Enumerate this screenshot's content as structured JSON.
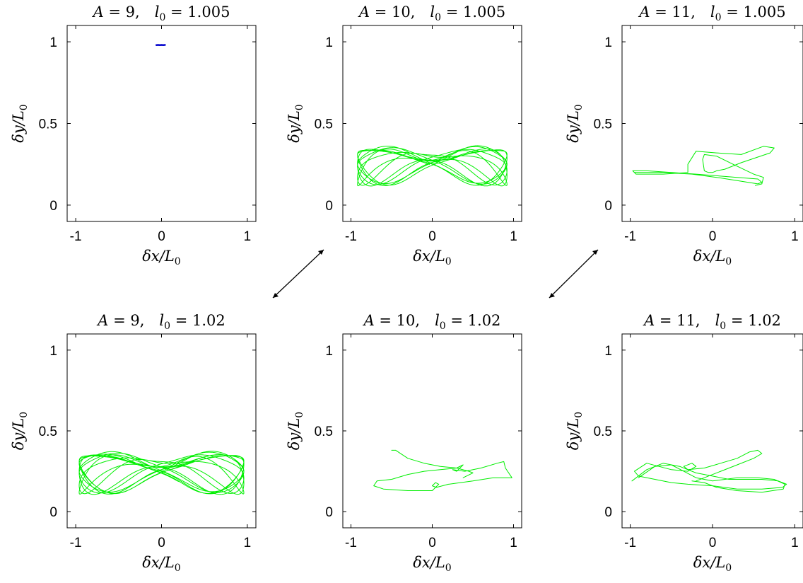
{
  "chart_data": [
    {
      "type": "line",
      "title": "A = 9,   l0 = 1.005",
      "title_parts": {
        "A": "9",
        "l0": "1.005"
      },
      "xlabel": "δx/L0",
      "ylabel": "δy/L0",
      "xlim": [
        -1.1,
        1.1
      ],
      "ylim": [
        -0.1,
        1.1
      ],
      "xticks": [
        "-1",
        "0",
        "1"
      ],
      "yticks": [
        "0",
        "0.5",
        "1"
      ],
      "grid": false,
      "series": [
        {
          "color": "#0000cc",
          "style": "point",
          "x": [
            -0.06,
            -0.04,
            -0.02,
            0.0,
            0.02,
            0.04
          ],
          "y": [
            0.98,
            0.981,
            0.98,
            0.981,
            0.98,
            0.981
          ]
        }
      ]
    },
    {
      "type": "line",
      "title": "A = 10,   l0 = 1.005",
      "title_parts": {
        "A": "10",
        "l0": "1.005"
      },
      "xlabel": "δx/L0",
      "ylabel": "δy/L0",
      "xlim": [
        -1.1,
        1.1
      ],
      "ylim": [
        -0.1,
        1.1
      ],
      "xticks": [
        "-1",
        "0",
        "1"
      ],
      "yticks": [
        "0",
        "0.5",
        "1"
      ],
      "grid": false,
      "series": [
        {
          "color": "#00ee00",
          "style": "butterfly",
          "xamp": 0.92,
          "yc": 0.25,
          "ywidth": 0.11,
          "loops": 14
        }
      ]
    },
    {
      "type": "line",
      "title": "A = 11,   l0 = 1.005",
      "title_parts": {
        "A": "11",
        "l0": "1.005"
      },
      "xlabel": "δx/L0",
      "ylabel": "δy/L0",
      "xlim": [
        -1.1,
        1.1
      ],
      "ylim": [
        -0.1,
        1.1
      ],
      "xticks": [
        "-1",
        "0",
        "1"
      ],
      "yticks": [
        "0",
        "0.5",
        "1"
      ],
      "grid": false,
      "series": [
        {
          "color": "#00ee00",
          "style": "path",
          "x": [
            -0.95,
            -0.6,
            -0.25,
            0.05,
            0.3,
            0.55,
            0.6,
            0.55,
            0.3,
            0.05,
            -0.2,
            -0.5,
            -0.8,
            -0.97,
            -0.93,
            -0.6,
            -0.3,
            -0.3,
            -0.2,
            0.05,
            0.35,
            0.62,
            0.75,
            0.7,
            0.35,
            0.15,
            0.05,
            0.0,
            -0.05,
            -0.1,
            -0.12,
            -0.1,
            0.05,
            0.25,
            0.5,
            0.62,
            0.6,
            0.52
          ],
          "y": [
            0.2,
            0.2,
            0.19,
            0.17,
            0.15,
            0.13,
            0.14,
            0.16,
            0.17,
            0.18,
            0.19,
            0.2,
            0.21,
            0.21,
            0.19,
            0.19,
            0.2,
            0.25,
            0.33,
            0.32,
            0.31,
            0.36,
            0.35,
            0.32,
            0.26,
            0.22,
            0.21,
            0.2,
            0.2,
            0.21,
            0.28,
            0.31,
            0.3,
            0.25,
            0.19,
            0.17,
            0.13,
            0.12
          ]
        }
      ]
    },
    {
      "type": "line",
      "title": "A = 9,   l0 = 1.02",
      "title_parts": {
        "A": "9",
        "l0": "1.02"
      },
      "xlabel": "δx/L0",
      "ylabel": "δy/L0",
      "xlim": [
        -1.1,
        1.1
      ],
      "ylim": [
        -0.1,
        1.1
      ],
      "xticks": [
        "-1",
        "0",
        "1"
      ],
      "yticks": [
        "0",
        "0.5",
        "1"
      ],
      "grid": false,
      "series": [
        {
          "color": "#00ee00",
          "style": "butterfly",
          "xamp": 0.96,
          "yc": 0.25,
          "ywidth": 0.12,
          "loops": 16
        }
      ]
    },
    {
      "type": "line",
      "title": "A = 10,   l0 = 1.02",
      "title_parts": {
        "A": "10",
        "l0": "1.02"
      },
      "xlabel": "δx/L0",
      "ylabel": "δy/L0",
      "xlim": [
        -1.1,
        1.1
      ],
      "ylim": [
        -0.1,
        1.1
      ],
      "xticks": [
        "-1",
        "0",
        "1"
      ],
      "yticks": [
        "0",
        "0.5",
        "1"
      ],
      "grid": false,
      "series": [
        {
          "color": "#00ee00",
          "style": "path",
          "x": [
            -0.5,
            -0.45,
            -0.3,
            -0.1,
            0.1,
            0.3,
            0.38,
            0.3,
            0.25,
            0.4,
            0.6,
            0.8,
            0.88,
            0.9,
            0.98,
            0.75,
            0.5,
            0.2,
            0.05,
            0.0,
            0.04,
            0.08,
            0.0,
            -0.3,
            -0.6,
            -0.72,
            -0.68,
            -0.5,
            -0.3,
            -0.1,
            0.1,
            0.3,
            0.45,
            0.5,
            0.42,
            0.38
          ],
          "y": [
            0.38,
            0.38,
            0.33,
            0.3,
            0.28,
            0.27,
            0.29,
            0.25,
            0.26,
            0.25,
            0.27,
            0.3,
            0.31,
            0.27,
            0.21,
            0.21,
            0.19,
            0.17,
            0.15,
            0.16,
            0.18,
            0.17,
            0.13,
            0.13,
            0.14,
            0.16,
            0.19,
            0.2,
            0.23,
            0.25,
            0.26,
            0.27,
            0.25,
            0.24,
            0.22,
            0.21
          ]
        }
      ]
    },
    {
      "type": "line",
      "title": "A = 11,   l0 = 1.02",
      "title_parts": {
        "A": "11",
        "l0": "1.02"
      },
      "xlabel": "δx/L0",
      "ylabel": "δy/L0",
      "xlim": [
        -1.1,
        1.1
      ],
      "ylim": [
        -0.1,
        1.1
      ],
      "xticks": [
        "-1",
        "0",
        "1"
      ],
      "yticks": [
        "0",
        "0.5",
        "1"
      ],
      "grid": false,
      "series": [
        {
          "color": "#00ee00",
          "style": "path",
          "x": [
            -0.98,
            -0.8,
            -0.6,
            -0.4,
            -0.2,
            0.0,
            0.2,
            0.4,
            0.6,
            0.8,
            0.9,
            0.85,
            0.6,
            0.3,
            0.0,
            -0.3,
            -0.5,
            -0.7,
            -0.9,
            -0.95,
            -0.8,
            -0.5,
            -0.3,
            -0.2,
            -0.25,
            -0.35,
            -0.3,
            -0.1,
            0.1,
            0.3,
            0.45,
            0.55,
            0.6,
            0.5,
            0.3,
            0.1,
            -0.1,
            -0.2
          ],
          "y": [
            0.19,
            0.26,
            0.3,
            0.28,
            0.24,
            0.22,
            0.2,
            0.2,
            0.2,
            0.19,
            0.17,
            0.15,
            0.14,
            0.14,
            0.16,
            0.17,
            0.18,
            0.2,
            0.22,
            0.25,
            0.3,
            0.26,
            0.25,
            0.28,
            0.3,
            0.28,
            0.26,
            0.27,
            0.3,
            0.33,
            0.37,
            0.38,
            0.36,
            0.33,
            0.29,
            0.25,
            0.21,
            0.19
          ]
        },
        {
          "color": "#00ee00",
          "style": "path",
          "x": [
            -0.9,
            -0.7,
            -0.5,
            -0.35,
            -0.2,
            0.0,
            0.3,
            0.55,
            0.75,
            0.88,
            0.86,
            0.6,
            0.3,
            0.05,
            -0.1,
            -0.25
          ],
          "y": [
            0.21,
            0.28,
            0.29,
            0.25,
            0.21,
            0.19,
            0.21,
            0.21,
            0.2,
            0.17,
            0.14,
            0.12,
            0.13,
            0.15,
            0.18,
            0.19
          ]
        }
      ]
    }
  ]
}
